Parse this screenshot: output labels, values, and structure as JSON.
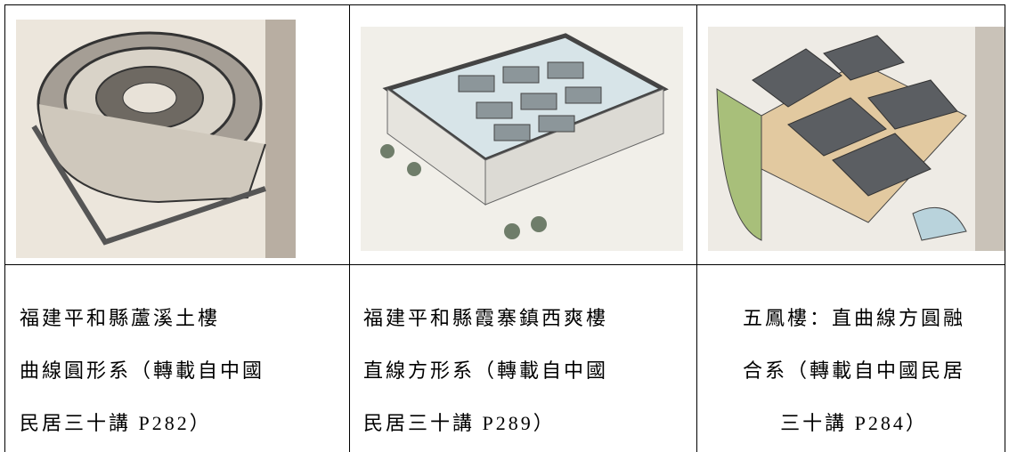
{
  "captions": [
    [
      "福建平和縣蘆溪土樓",
      "曲線圓形系（轉載自中國",
      "民居三十講 P282）"
    ],
    [
      "福建平和縣霞寨鎮西爽樓",
      "直線方形系（轉載自中國",
      "民居三十講 P289）"
    ],
    [
      "五鳳樓：直曲線方圓融",
      "合系（轉載自中國民居",
      "三十講 P284）"
    ]
  ]
}
